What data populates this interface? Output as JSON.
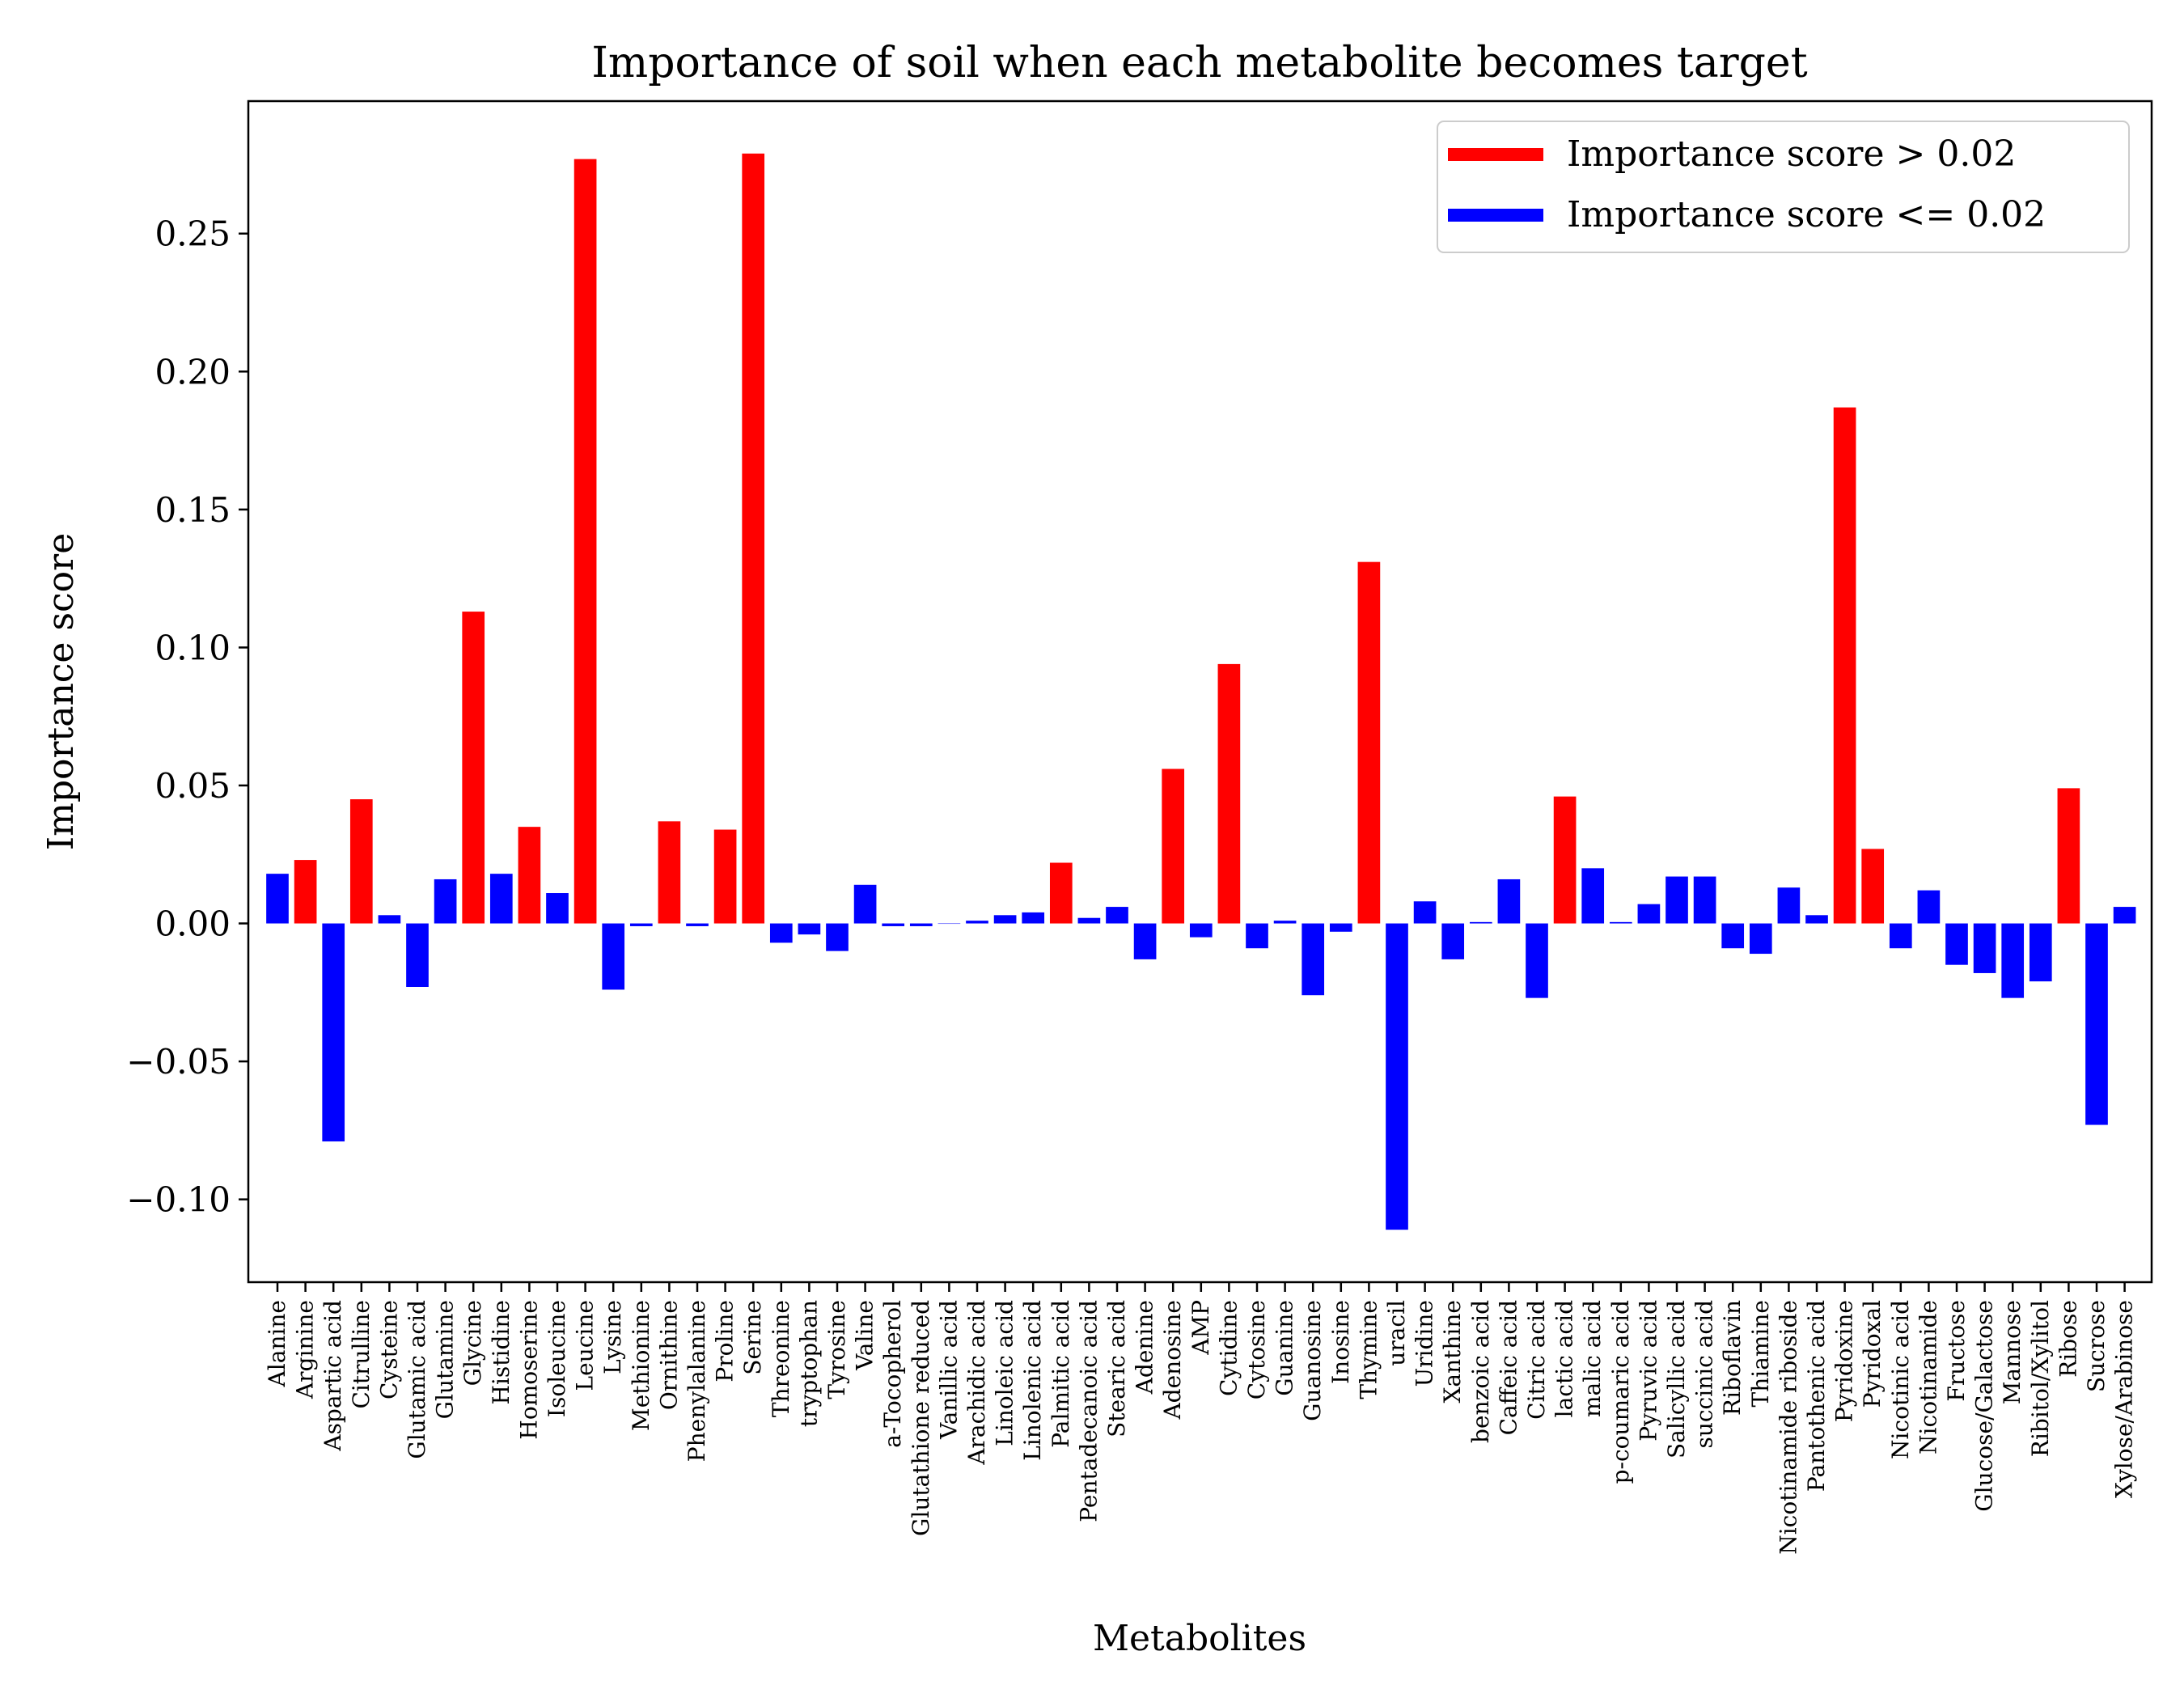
{
  "chart_data": {
    "type": "bar",
    "title": "Importance of soil when each metabolite becomes target",
    "xlabel": "Metabolites",
    "ylabel": "Importance score",
    "ylim": [
      -0.13,
      0.298
    ],
    "yticks": [
      -0.1,
      -0.05,
      0.0,
      0.05,
      0.1,
      0.15,
      0.2,
      0.25
    ],
    "ytick_labels": [
      "−0.10",
      "−0.05",
      "0.00",
      "0.05",
      "0.10",
      "0.15",
      "0.20",
      "0.25"
    ],
    "threshold": 0.02,
    "grid": false,
    "legend_position": "top-right",
    "colors": {
      "above": "#ff0000",
      "below": "#0000ff"
    },
    "legend": [
      {
        "label": "Importance score > 0.02",
        "color": "#ff0000"
      },
      {
        "label": "Importance score <= 0.02",
        "color": "#0000ff"
      }
    ],
    "categories": [
      "Alanine",
      "Arginine",
      "Aspartic acid",
      "Citrulline",
      "Cysteine",
      "Glutamic acid",
      "Glutamine",
      "Glycine",
      "Histidine",
      "Homoserine",
      "Isoleucine",
      "Leucine",
      "Lysine",
      "Methionine",
      "Ornithine",
      "Phenylalanine",
      "Proline",
      "Serine",
      "Threonine",
      "tryptophan",
      "Tyrosine",
      "Valine",
      "a-Tocopherol",
      "Glutathione reduced",
      "Vanillic acid",
      "Arachidic acid",
      "Linoleic acid",
      "Linolenic acid",
      "Palmitic acid",
      "Pentadecanoic acid",
      "Stearic acid",
      "Adenine",
      "Adenosine",
      "AMP",
      "Cytidine",
      "Cytosine",
      "Guanine",
      "Guanosine",
      "Inosine",
      "Thymine",
      "uracil",
      "Uridine",
      "Xanthine",
      "benzoic acid",
      "Caffeic acid",
      "Citric acid",
      "lactic acid",
      "malic acid",
      "p-coumaric acid",
      "Pyruvic acid",
      "Salicyllic acid",
      "succinic acid",
      "Riboflavin",
      "Thiamine",
      "Nicotinamide riboside",
      "Pantothenic acid",
      "Pyridoxine",
      "Pyridoxal",
      "Nicotinic acid",
      "Nicotinamide",
      "Fructose",
      "Glucose/Galactose",
      "Mannose",
      "Ribitol/Xylitol",
      "Ribose",
      "Sucrose",
      "Xylose/Arabinose"
    ],
    "values": [
      0.018,
      0.023,
      -0.079,
      0.045,
      0.003,
      -0.023,
      0.016,
      0.113,
      0.018,
      0.035,
      0.011,
      0.277,
      -0.024,
      -0.001,
      0.037,
      -0.001,
      0.034,
      0.279,
      -0.007,
      -0.004,
      -0.01,
      0.014,
      -0.001,
      -0.001,
      0.0,
      0.001,
      0.003,
      0.004,
      0.022,
      0.002,
      0.006,
      -0.013,
      0.056,
      -0.005,
      0.094,
      -0.009,
      0.001,
      -0.026,
      -0.003,
      0.131,
      -0.111,
      0.008,
      -0.013,
      0.0005,
      0.016,
      -0.027,
      0.046,
      0.02,
      0.0005,
      0.007,
      0.017,
      0.017,
      -0.009,
      -0.011,
      0.013,
      0.003,
      0.187,
      0.027,
      -0.009,
      0.012,
      -0.015,
      -0.018,
      -0.027,
      -0.021,
      0.049,
      -0.073,
      0.006
    ]
  }
}
